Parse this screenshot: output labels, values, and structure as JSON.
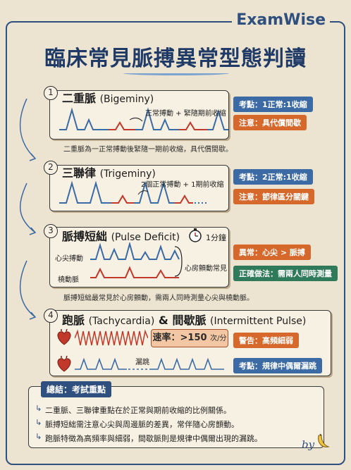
{
  "brand": "ExamWise",
  "title": "臨床常見脈搏異常型態判讀",
  "sections": [
    {
      "number": "1",
      "title_zh": "二重脈",
      "title_en": "(Bigeminy)",
      "annotation": "正常搏動 + 緊隨期前收縮",
      "tags": [
        "考點：1正常:1收縮",
        "注意：具代償間歇"
      ],
      "note": "二重脈為一正常搏動後緊隨一期前收縮，具代償間歇。"
    },
    {
      "number": "2",
      "title_zh": "三聯律",
      "title_en": "(Trigeminy)",
      "annotation": "2個正常搏動 + 1期前收縮",
      "tags": [
        "考點：2正常:1收縮",
        "注意：節律區分關鍵"
      ]
    },
    {
      "number": "3",
      "title_zh": "脈搏短絀",
      "title_en": "(Pulse Deficit)",
      "timer_label": "1分鐘",
      "label_apical": "心尖搏動",
      "label_radial": "橈動脈",
      "annotation": "心房顫動常見",
      "tags": [
        "異常：心尖 > 脈搏",
        "正確做法：需兩人同時測量"
      ],
      "note": "脈搏短絀最常見於心房顫動，需兩人同時測量心尖與橈動脈。"
    },
    {
      "number": "4",
      "title_zh": "跑脈",
      "title_en": "(Tachycardia)",
      "title_mid": "&",
      "title_zh2": "間歇脈",
      "title_en2": "(Intermittent Pulse)",
      "rate_label": "速率：>150",
      "rate_unit": "次/分",
      "skip_label": "漏跳",
      "tags": [
        "警告：高頻細弱",
        "考點：規律中偶爾漏跳"
      ]
    }
  ],
  "summary": {
    "title": "總結：考試重點",
    "items": [
      "二重脈、三聯律重點在於正常與期前收縮的比例關係。",
      "脈搏短絀需注意心尖與周邊脈的差異，常伴隨心房顫動。",
      "跑脈特徵為高頻率與細弱，間歇脈則是規律中偶爾出現的漏跳。"
    ]
  },
  "signature": "by",
  "colors": {
    "navy": "#2f4f7f",
    "blue_tag": "#3b6aa5",
    "orange_tag": "#d7682b",
    "green_tag": "#2f7a5a",
    "wave_blue": "#3b6aa5",
    "wave_red": "#c0392b"
  }
}
